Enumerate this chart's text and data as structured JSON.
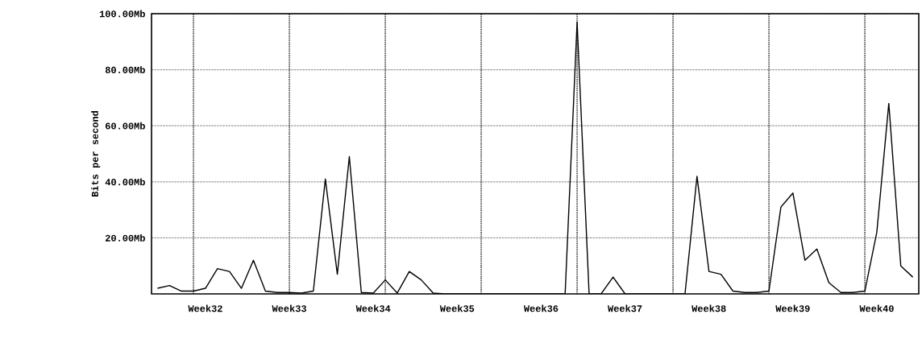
{
  "chart_data": {
    "type": "line",
    "ylabel": "Bits per second",
    "categories": [
      null,
      null,
      null,
      null,
      "Week32",
      null,
      null,
      null,
      null,
      null,
      null,
      "Week33",
      null,
      null,
      null,
      null,
      null,
      null,
      "Week34",
      null,
      null,
      null,
      null,
      null,
      null,
      "Week35",
      null,
      null,
      null,
      null,
      null,
      null,
      "Week36",
      null,
      null,
      null,
      null,
      null,
      null,
      "Week37",
      null,
      null,
      null,
      null,
      null,
      null,
      "Week38",
      null,
      null,
      null,
      null,
      null,
      null,
      "Week39",
      null,
      null,
      null,
      null,
      null,
      null,
      "Week40",
      null,
      null,
      null
    ],
    "series": [
      {
        "color": "#000000",
        "values": [
          2,
          3,
          1,
          1,
          2,
          9,
          8,
          2,
          12,
          1,
          0.5,
          0.5,
          0.3,
          1,
          41,
          7,
          49,
          0.5,
          0.3,
          5,
          0.3,
          8,
          5,
          0.3,
          0,
          0,
          0,
          0,
          0,
          0,
          0,
          0,
          0,
          0,
          0,
          97,
          0,
          0,
          6,
          0,
          0,
          0,
          0,
          0,
          0,
          42,
          8,
          7,
          1,
          0.5,
          0.5,
          1,
          31,
          36,
          12,
          16,
          4,
          0.5,
          0.5,
          1,
          22,
          68,
          10,
          6
        ]
      }
    ],
    "ylim": [
      0,
      100
    ],
    "yticks": [
      {
        "value": 20,
        "label": "20.00Mb"
      },
      {
        "value": 40,
        "label": "40.00Mb"
      },
      {
        "value": 60,
        "label": "60.00Mb"
      },
      {
        "value": 80,
        "label": "80.00Mb"
      },
      {
        "value": 100,
        "label": "100.00Mb"
      }
    ],
    "grid": true,
    "line_style": "solid",
    "marker": "none"
  }
}
